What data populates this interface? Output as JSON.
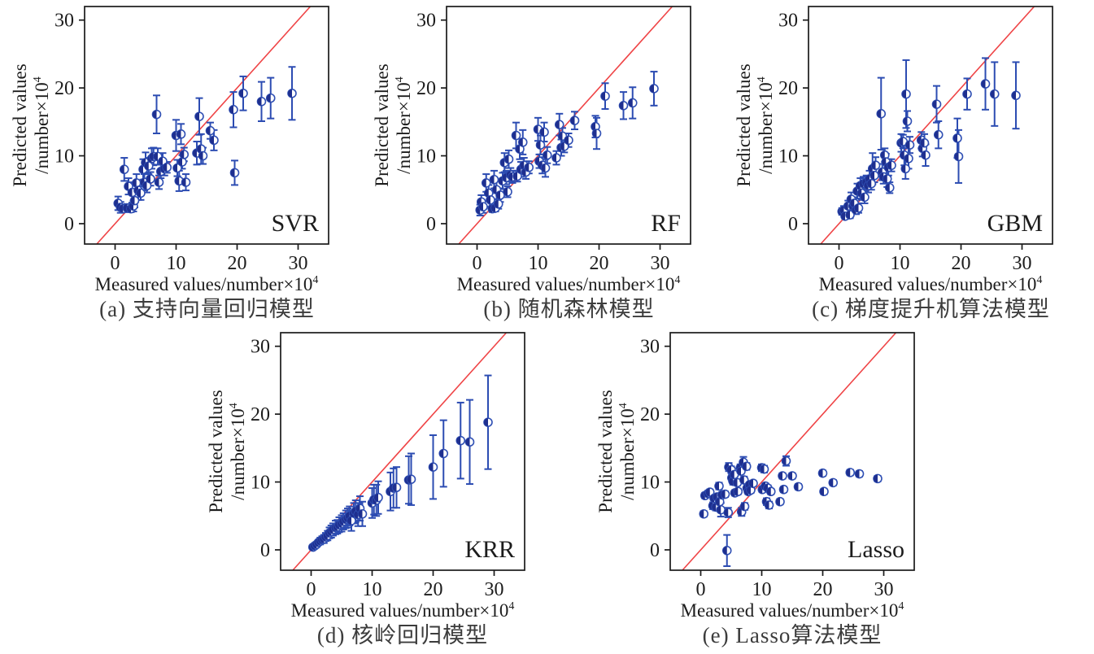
{
  "colors": {
    "marker_fill": "#1e2f8f",
    "marker_edge": "#3050b4",
    "error_bar": "#2c4cb2",
    "identity_line": "#ef4446",
    "axis": "#1a1a1a",
    "text": "#1c1c1c",
    "caption_text": "#3c3c3c"
  },
  "chart_data": [
    {
      "id": "svr",
      "type": "scatter",
      "model_label": "SVR",
      "caption": "(a) 支持向量回归模型",
      "xlabel_base": "Measured values/number×10",
      "xlabel_sup": "4",
      "ylabel1": "Predicted values",
      "ylabel2_base": "/number×10",
      "ylabel2_sup": "4",
      "xlim": [
        -5,
        35
      ],
      "ylim": [
        -3,
        32
      ],
      "xticks": [
        0,
        10,
        20,
        30
      ],
      "yticks": [
        0,
        10,
        20,
        30
      ],
      "identity_line": true,
      "legend_position": "bottom-right",
      "grid": false,
      "points": [
        [
          0.5,
          3,
          1
        ],
        [
          0.9,
          2.4,
          0.8
        ],
        [
          1.3,
          2.2,
          0.5
        ],
        [
          1.5,
          8,
          1.7
        ],
        [
          2,
          2.3,
          0.6
        ],
        [
          2.2,
          5.5,
          1.2
        ],
        [
          2.6,
          2.2,
          0.5
        ],
        [
          2.8,
          4.6,
          1.5
        ],
        [
          3,
          2.6,
          0.8
        ],
        [
          3.2,
          3.4,
          1
        ],
        [
          3.5,
          6,
          1.3
        ],
        [
          3.8,
          4.9,
          1.4
        ],
        [
          4.2,
          4.5,
          1
        ],
        [
          4.6,
          8,
          1.5
        ],
        [
          4.8,
          6.1,
          1.2
        ],
        [
          5,
          9,
          1.5
        ],
        [
          5.2,
          5.6,
          1
        ],
        [
          5.5,
          8.5,
          1.2
        ],
        [
          5.8,
          6.6,
          1
        ],
        [
          6,
          9.6,
          1.5
        ],
        [
          6.3,
          9.9,
          1.3
        ],
        [
          6.8,
          16.1,
          2.8
        ],
        [
          7,
          9.9,
          1.2
        ],
        [
          7.2,
          6.1,
          1
        ],
        [
          7.5,
          7.7,
          1
        ],
        [
          7.8,
          9.2,
          1.2
        ],
        [
          8.1,
          8.1,
          1
        ],
        [
          8.5,
          8.3,
          0.8
        ],
        [
          10,
          13,
          2.3
        ],
        [
          10.2,
          8.2,
          1.2
        ],
        [
          10.5,
          6.3,
          1.5
        ],
        [
          10.8,
          13.2,
          1.5
        ],
        [
          11,
          9.1,
          1
        ],
        [
          11.3,
          10.2,
          1
        ],
        [
          11.6,
          6.1,
          1.2
        ],
        [
          13.4,
          10.4,
          1.7
        ],
        [
          13.8,
          15.8,
          2.7
        ],
        [
          14.1,
          11,
          2.2
        ],
        [
          14.4,
          10,
          1.2
        ],
        [
          15.6,
          13.7,
          1.2
        ],
        [
          16.2,
          12.3,
          1.5
        ],
        [
          19.4,
          16.8,
          2.6
        ],
        [
          19.6,
          7.5,
          1.8
        ],
        [
          21,
          19.2,
          2.5
        ],
        [
          24,
          18,
          2.9
        ],
        [
          25.5,
          18.5,
          3
        ],
        [
          29,
          19.2,
          3.9
        ]
      ]
    },
    {
      "id": "rf",
      "type": "scatter",
      "model_label": "RF",
      "caption": "(b) 随机森林模型",
      "xlabel_base": "Measured values/number×10",
      "xlabel_sup": "4",
      "ylabel1": "Predicted values",
      "ylabel2_base": "/number×10",
      "ylabel2_sup": "4",
      "xlim": [
        -5,
        35
      ],
      "ylim": [
        -3,
        32
      ],
      "xticks": [
        0,
        10,
        20,
        30
      ],
      "yticks": [
        0,
        10,
        20,
        30
      ],
      "identity_line": true,
      "legend_position": "bottom-right",
      "grid": false,
      "points": [
        [
          0.5,
          2,
          0.8
        ],
        [
          0.7,
          3.2,
          1
        ],
        [
          1,
          2.5,
          0.9
        ],
        [
          1.5,
          6,
          1.3
        ],
        [
          1.9,
          4.5,
          1.2
        ],
        [
          2.2,
          3.5,
          1
        ],
        [
          2.5,
          2.2,
          0.5
        ],
        [
          2.8,
          6.5,
          1.3
        ],
        [
          3,
          2.3,
          0.5
        ],
        [
          3.2,
          5,
          1.4
        ],
        [
          3.5,
          2.9,
          0.7
        ],
        [
          3.8,
          4.2,
          1
        ],
        [
          4.2,
          6.3,
          1.2
        ],
        [
          4.5,
          9,
          1.4
        ],
        [
          4.8,
          6.8,
          1
        ],
        [
          5,
          4.7,
          0.8
        ],
        [
          5.2,
          9.5,
          1.3
        ],
        [
          5.5,
          7.2,
          1
        ],
        [
          5.8,
          6.9,
          0.9
        ],
        [
          6.4,
          13,
          1.9
        ],
        [
          6.6,
          7,
          0.8
        ],
        [
          7,
          11,
          1.5
        ],
        [
          7.2,
          8,
          1.1
        ],
        [
          7.5,
          12,
          1.8
        ],
        [
          7.7,
          8.6,
          1.1
        ],
        [
          8,
          7.6,
          1
        ],
        [
          8.5,
          8.3,
          0.9
        ],
        [
          10,
          13.9,
          1.7
        ],
        [
          10.2,
          9.2,
          1
        ],
        [
          10.4,
          11.6,
          1.4
        ],
        [
          10.7,
          8.6,
          1.2
        ],
        [
          11,
          13.5,
          1.4
        ],
        [
          11.2,
          8.2,
          1.3
        ],
        [
          11.5,
          10.1,
          1.2
        ],
        [
          13,
          9.7,
          1
        ],
        [
          13.5,
          14.6,
          1.6
        ],
        [
          13.8,
          11.2,
          1.2
        ],
        [
          14,
          12.9,
          1.2
        ],
        [
          14.3,
          11.4,
          0.9
        ],
        [
          15,
          12.3,
          1
        ],
        [
          16,
          15.2,
          1.3
        ],
        [
          19.4,
          14.3,
          1.6
        ],
        [
          19.6,
          13.3,
          2.3
        ],
        [
          21,
          18.8,
          1.9
        ],
        [
          24,
          17.4,
          2
        ],
        [
          25.5,
          17.8,
          2.3
        ],
        [
          29,
          19.9,
          2.5
        ]
      ]
    },
    {
      "id": "gbm",
      "type": "scatter",
      "model_label": "GBM",
      "caption": "(c) 梯度提升机算法模型",
      "xlabel_base": "Measured values/number×10",
      "xlabel_sup": "4",
      "ylabel1": "Predicted values",
      "ylabel2_base": "/number×10",
      "ylabel2_sup": "4",
      "xlim": [
        -5,
        35
      ],
      "ylim": [
        -3,
        32
      ],
      "xticks": [
        0,
        10,
        20,
        30
      ],
      "yticks": [
        0,
        10,
        20,
        30
      ],
      "identity_line": true,
      "legend_position": "bottom-right",
      "grid": false,
      "points": [
        [
          0.5,
          1.8,
          0.5
        ],
        [
          0.8,
          2,
          0.6
        ],
        [
          1,
          1.1,
          0.4
        ],
        [
          1.5,
          2.6,
          0.8
        ],
        [
          1.8,
          1.3,
          0.5
        ],
        [
          2,
          3.6,
          1
        ],
        [
          2.3,
          2.6,
          0.8
        ],
        [
          2.5,
          3,
          0.9
        ],
        [
          2.8,
          2,
          0.6
        ],
        [
          3,
          4.8,
          1.1
        ],
        [
          3.2,
          2.3,
          0.7
        ],
        [
          3.5,
          5.6,
          1.1
        ],
        [
          3.7,
          4.5,
          1
        ],
        [
          4,
          5.9,
          1
        ],
        [
          4.2,
          3.9,
          0.9
        ],
        [
          4.5,
          6.1,
          1
        ],
        [
          4.8,
          5.6,
          1
        ],
        [
          5,
          6.6,
          1.2
        ],
        [
          5.3,
          5.9,
          0.9
        ],
        [
          5.5,
          8.1,
          2.3
        ],
        [
          5.8,
          7.1,
          1
        ],
        [
          6,
          8.6,
          1.2
        ],
        [
          6.9,
          16.2,
          5.3
        ],
        [
          7.1,
          7.6,
          1.2
        ],
        [
          7.3,
          6.9,
          1
        ],
        [
          7.5,
          10.1,
          1
        ],
        [
          7.7,
          9.1,
          1.2
        ],
        [
          7.9,
          6.6,
          1.2
        ],
        [
          8.1,
          8.3,
          1.2
        ],
        [
          8.3,
          5.3,
          0.8
        ],
        [
          8.6,
          8.6,
          0.9
        ],
        [
          10.2,
          11.9,
          1.3
        ],
        [
          10.5,
          12.1,
          1
        ],
        [
          10.7,
          10.1,
          1.5
        ],
        [
          10.9,
          8.1,
          1.5
        ],
        [
          11,
          19.1,
          5
        ],
        [
          11.2,
          15.1,
          1.5
        ],
        [
          11.4,
          9.6,
          1.5
        ],
        [
          11.6,
          11.6,
          1.2
        ],
        [
          13.5,
          12.3,
          1.2
        ],
        [
          13.7,
          11.1,
          1.2
        ],
        [
          14,
          11.9,
          1.3
        ],
        [
          14.2,
          10.1,
          1.6
        ],
        [
          16,
          17.6,
          2.7
        ],
        [
          16.3,
          13.1,
          2
        ],
        [
          19.4,
          12.6,
          2.9
        ],
        [
          19.6,
          9.9,
          3.9
        ],
        [
          21,
          19.1,
          2.3
        ],
        [
          24,
          20.6,
          3.8
        ],
        [
          25.5,
          19.1,
          4.7
        ],
        [
          29,
          18.9,
          4.9
        ]
      ]
    },
    {
      "id": "krr",
      "type": "scatter",
      "model_label": "KRR",
      "caption": "(d) 核岭回归模型",
      "xlabel_base": "Measured values/number×10",
      "xlabel_sup": "4",
      "ylabel1": "Predicted values",
      "ylabel2_base": "/number×10",
      "ylabel2_sup": "4",
      "xlim": [
        -5,
        35
      ],
      "ylim": [
        -3,
        32
      ],
      "xticks": [
        0,
        10,
        20,
        30
      ],
      "yticks": [
        0,
        10,
        20,
        30
      ],
      "identity_line": true,
      "legend_position": "bottom-right",
      "grid": false,
      "points": [
        [
          0.3,
          0.4,
          0.2
        ],
        [
          0.6,
          0.6,
          0.25
        ],
        [
          0.9,
          0.8,
          0.3
        ],
        [
          1.2,
          1.1,
          0.35
        ],
        [
          1.5,
          1.3,
          0.5
        ],
        [
          1.8,
          1.5,
          0.5
        ],
        [
          2.1,
          1.6,
          0.6
        ],
        [
          2.4,
          1.9,
          0.6
        ],
        [
          2.7,
          2.1,
          0.7
        ],
        [
          3,
          2.5,
          0.8
        ],
        [
          3.3,
          2.7,
          0.9
        ],
        [
          3.6,
          3,
          0.9
        ],
        [
          4,
          3.3,
          1
        ],
        [
          4.3,
          3.4,
          1
        ],
        [
          4.6,
          3.7,
          1.1
        ],
        [
          5,
          3.9,
          1.2
        ],
        [
          5.3,
          4.2,
          1.2
        ],
        [
          5.7,
          4.5,
          1.3
        ],
        [
          6,
          4.7,
          1.4
        ],
        [
          6.3,
          5,
          1.4
        ],
        [
          6.6,
          4.3,
          1.5
        ],
        [
          7,
          5.4,
          1.5
        ],
        [
          7.3,
          5.7,
          1.6
        ],
        [
          7.7,
          5.2,
          1.7
        ],
        [
          8,
          6.1,
          1.8
        ],
        [
          8.4,
          5.3,
          1.8
        ],
        [
          10,
          6.9,
          2.2
        ],
        [
          10.3,
          7.4,
          2.2
        ],
        [
          10.7,
          7.3,
          2.3
        ],
        [
          11,
          7.7,
          2.4
        ],
        [
          13,
          8.6,
          2.8
        ],
        [
          13.5,
          9.1,
          2.9
        ],
        [
          14,
          9.2,
          3
        ],
        [
          16,
          10.3,
          3.5
        ],
        [
          16.4,
          10.4,
          3.8
        ],
        [
          20,
          12.2,
          4.7
        ],
        [
          21.7,
          14.2,
          4.9
        ],
        [
          24.5,
          16.1,
          5.6
        ],
        [
          26,
          15.9,
          6.2
        ],
        [
          29,
          18.8,
          6.9
        ]
      ]
    },
    {
      "id": "lasso",
      "type": "scatter",
      "model_label": "Lasso",
      "caption": "(e) Lasso算法模型",
      "xlabel_base": "Measured values/number×10",
      "xlabel_sup": "4",
      "ylabel1": "Predicted values",
      "ylabel2_base": "/number×10",
      "ylabel2_sup": "4",
      "xlim": [
        -5,
        35
      ],
      "ylim": [
        -3,
        32
      ],
      "xticks": [
        0,
        10,
        20,
        30
      ],
      "yticks": [
        0,
        10,
        20,
        30
      ],
      "identity_line": true,
      "legend_position": "bottom-right",
      "grid": false,
      "points": [
        [
          0.5,
          5.3,
          0.4
        ],
        [
          0.7,
          8,
          0.4
        ],
        [
          1.2,
          8.3,
          0.4
        ],
        [
          1.5,
          8.5,
          0.4
        ],
        [
          2,
          6.5,
          0.5
        ],
        [
          2.2,
          7.6,
          0.4
        ],
        [
          2.5,
          6.3,
          0.5
        ],
        [
          2.7,
          7.8,
          0.4
        ],
        [
          3,
          9.4,
          0.5
        ],
        [
          3.1,
          7.1,
          0.4
        ],
        [
          3.3,
          5.9,
          1
        ],
        [
          3.5,
          8.1,
          0.4
        ],
        [
          4,
          8.2,
          0.4
        ],
        [
          4.3,
          -0.1,
          2.3
        ],
        [
          4.5,
          5.5,
          0.7
        ],
        [
          4.6,
          12.2,
          0.6
        ],
        [
          5,
          11.8,
          0.5
        ],
        [
          5.1,
          10.6,
          0.5
        ],
        [
          5.3,
          10.1,
          0.5
        ],
        [
          5.5,
          11.1,
          0.4
        ],
        [
          5.6,
          8.4,
          0.4
        ],
        [
          6,
          9.9,
          0.4
        ],
        [
          6.1,
          8.6,
          0.4
        ],
        [
          6.5,
          12.1,
          0.5
        ],
        [
          6.6,
          11.6,
          0.4
        ],
        [
          6.7,
          5.6,
          0.6
        ],
        [
          7,
          12.9,
          0.8
        ],
        [
          7.1,
          10.3,
          0.5
        ],
        [
          7.2,
          6.4,
          0.5
        ],
        [
          7.5,
          12.3,
          0.5
        ],
        [
          7.6,
          9.1,
          0.4
        ],
        [
          7.8,
          8.6,
          0.4
        ],
        [
          8,
          9.6,
          0.4
        ],
        [
          8.2,
          8.8,
          0.4
        ],
        [
          8.6,
          9.8,
          0.4
        ],
        [
          10,
          12.1,
          0.5
        ],
        [
          10.1,
          8.9,
          0.4
        ],
        [
          10.4,
          11.9,
          0.5
        ],
        [
          10.6,
          9.4,
          0.4
        ],
        [
          10.8,
          7.1,
          0.5
        ],
        [
          11,
          9.1,
          0.4
        ],
        [
          11.2,
          6.6,
          0.5
        ],
        [
          11.5,
          8.6,
          0.4
        ],
        [
          13,
          7.1,
          0.4
        ],
        [
          13.4,
          10.9,
          0.4
        ],
        [
          13.6,
          8.9,
          0.4
        ],
        [
          14,
          13.1,
          0.7
        ],
        [
          15,
          10.9,
          0.4
        ],
        [
          16,
          9.3,
          0.4
        ],
        [
          20,
          11.3,
          0.4
        ],
        [
          20.2,
          8.6,
          0.4
        ],
        [
          21.7,
          9.9,
          0.4
        ],
        [
          24.5,
          11.4,
          0.4
        ],
        [
          26,
          11.2,
          0.4
        ],
        [
          29,
          10.5,
          0.4
        ]
      ]
    }
  ]
}
